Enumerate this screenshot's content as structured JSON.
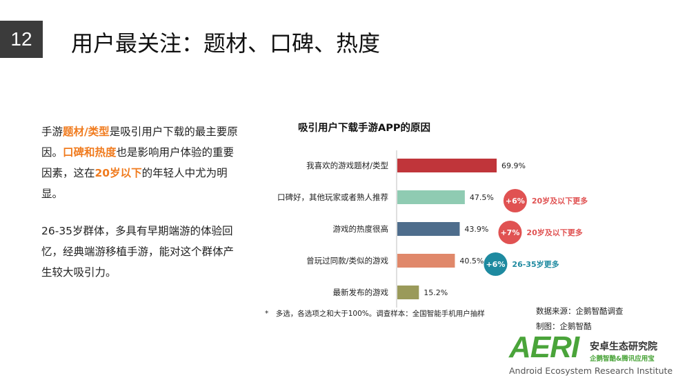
{
  "slide": {
    "number": "12",
    "title": "用户最关注：题材、口碑、热度"
  },
  "left_text": {
    "p1_a": "手游",
    "p1_b": "题材/类型",
    "p1_c": "是吸引用户下载的最主要原因。",
    "p1_d": "口碑和热度",
    "p1_e": "也是影响用户体验的重要因素，这在",
    "p1_f": "20岁以下",
    "p1_g": "的年轻人中尤为明显。",
    "p2": "26-35岁群体，多具有早期端游的体验回忆，经典端游移植手游，能对这个群体产生较大吸引力。"
  },
  "colors": {
    "highlight": "#f07b1e",
    "red_badge": "#e05252",
    "teal_badge": "#1e8aa0"
  },
  "chart_data": {
    "type": "bar",
    "orientation": "horizontal",
    "title": "吸引用户下载手游APP的原因",
    "categories": [
      "我喜欢的游戏题材/类型",
      "口碑好，其他玩家或者熟人推荐",
      "游戏的热度很高",
      "曾玩过同款/类似的游戏",
      "最新发布的游戏"
    ],
    "values": [
      69.9,
      47.5,
      43.9,
      40.5,
      15.2
    ],
    "value_labels": [
      "69.9%",
      "47.5%",
      "43.9%",
      "40.5%",
      "15.2%"
    ],
    "bar_colors": [
      "#c0353a",
      "#8fcbb2",
      "#4e6d8c",
      "#e0886a",
      "#9a9a5a"
    ],
    "xlim": [
      0,
      100
    ],
    "annotations": [
      {
        "category_index": 1,
        "badge": "+6%",
        "text": "20岁及以下更多",
        "color": "#e05252"
      },
      {
        "category_index": 2,
        "badge": "+7%",
        "text": "20岁及以下更多",
        "color": "#e05252"
      },
      {
        "category_index": 3,
        "badge": "+6%",
        "text": "26-35岁更多",
        "color": "#1e8aa0"
      }
    ]
  },
  "footnote": "*　多选，各选项之和大于100%。调查样本：全国智能手机用户抽样",
  "source": {
    "line1": "数据来源：企鹅智酷调查",
    "line2": "制图：企鹅智酷"
  },
  "logo": {
    "mark": "AERI",
    "cn": "安卓生态研究院",
    "sub": "企鹅智酷&腾讯应用宝",
    "en": "Android Ecosystem Research Institute"
  }
}
